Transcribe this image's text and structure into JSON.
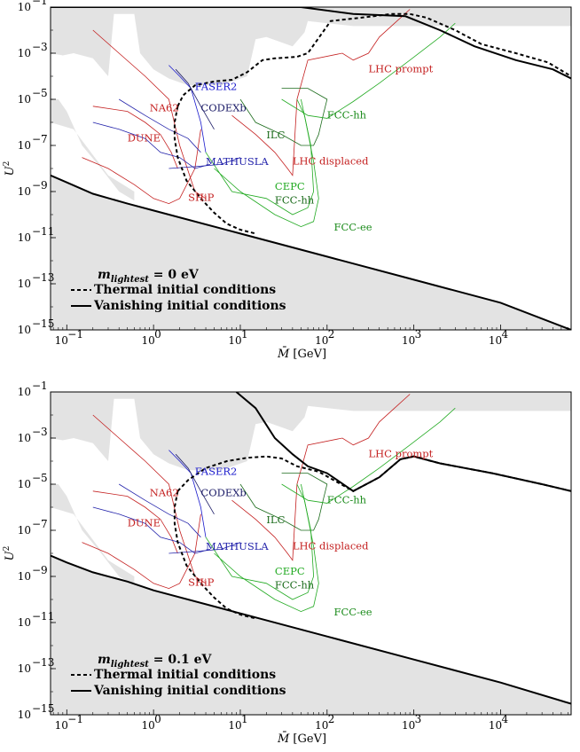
{
  "chart_data": [
    {
      "type": "line",
      "title": "",
      "annotation": "m_lightest = 0 eV",
      "annotation_main": "m",
      "annotation_sub": "lightest",
      "annotation_value": " = 0 eV",
      "xlabel_main": "M̄",
      "xlabel_unit": " [GeV]",
      "ylabel_main": "U",
      "ylabel_exp": "2",
      "xscale": "log",
      "yscale": "log",
      "xlim": [
        0.065,
        65000
      ],
      "ylim": [
        1e-15,
        0.1
      ],
      "x_ticks": [
        {
          "v": 0.1,
          "b": "10",
          "e": "−1"
        },
        {
          "v": 1,
          "b": "10",
          "e": "0"
        },
        {
          "v": 10,
          "b": "10",
          "e": "1"
        },
        {
          "v": 100,
          "b": "10",
          "e": "2"
        },
        {
          "v": 1000,
          "b": "10",
          "e": "3"
        },
        {
          "v": 10000,
          "b": "10",
          "e": "4"
        }
      ],
      "y_ticks": [
        {
          "v": 0.1,
          "b": "10",
          "e": "−1"
        },
        {
          "v": 0.001,
          "b": "10",
          "e": "−3"
        },
        {
          "v": 1e-05,
          "b": "10",
          "e": "−5"
        },
        {
          "v": 1e-07,
          "b": "10",
          "e": "−7"
        },
        {
          "v": 1e-09,
          "b": "10",
          "e": "−9"
        },
        {
          "v": 1e-11,
          "b": "10",
          "e": "−11"
        },
        {
          "v": 1e-13,
          "b": "10",
          "e": "−13"
        },
        {
          "v": 1e-15,
          "b": "10",
          "e": "−15"
        }
      ],
      "legend": [
        {
          "name": "Thermal initial conditions",
          "style": "dotted"
        },
        {
          "name": "Vanishing initial conditions",
          "style": "solid"
        }
      ],
      "series": [
        {
          "name": "Thermal initial conditions",
          "style": "dotted",
          "points": [
            [
              1.9,
              5e-06
            ],
            [
              2.2,
              1.5e-05
            ],
            [
              3,
              4e-05
            ],
            [
              5,
              6e-05
            ],
            [
              8,
              7e-05
            ],
            [
              12,
              0.00015
            ],
            [
              18,
              0.0005
            ],
            [
              25,
              0.0006
            ],
            [
              45,
              0.0007
            ],
            [
              60,
              0.001
            ],
            [
              110,
              0.025
            ],
            [
              250,
              0.035
            ],
            [
              550,
              0.05
            ],
            [
              900,
              0.05
            ],
            [
              1400,
              0.035
            ],
            [
              3000,
              0.01
            ],
            [
              6000,
              0.0025
            ],
            [
              15000,
              0.001
            ],
            [
              35000,
              0.0004
            ],
            [
              65000,
              0.0001
            ],
            [
              65000,
              0.0001
            ]
          ],
          "lower": [
            [
              1.9,
              5e-06
            ],
            [
              1.75,
              1e-06
            ],
            [
              1.75,
              2e-07
            ],
            [
              1.9,
              3e-08
            ],
            [
              2.4,
              3e-09
            ],
            [
              3.5,
              5e-10
            ],
            [
              5,
              1.2e-10
            ],
            [
              7,
              4e-11
            ],
            [
              10,
              2.2e-11
            ],
            [
              15,
              1.5e-11
            ]
          ]
        },
        {
          "name": "Vanishing initial conditions",
          "style": "solid",
          "points": [
            [
              0.065,
              5e-09
            ],
            [
              0.1,
              2.5e-09
            ],
            [
              0.2,
              8e-10
            ],
            [
              0.5,
              3e-10
            ],
            [
              1,
              1.5e-10
            ],
            [
              10,
              1.5e-11
            ],
            [
              100,
              1.5e-12
            ],
            [
              1000,
              1.5e-13
            ],
            [
              10000,
              1.5e-14
            ],
            [
              65000,
              1e-15
            ]
          ],
          "upper": [
            [
              0.065,
              0.1
            ],
            [
              50,
              0.1
            ],
            [
              200,
              0.05
            ],
            [
              800,
              0.04
            ],
            [
              2000,
              0.01
            ],
            [
              5000,
              0.002
            ],
            [
              15000,
              0.0005
            ],
            [
              40000,
              0.0002
            ],
            [
              65000,
              8e-05
            ]
          ]
        }
      ],
      "labels": [
        {
          "text": "FASER2",
          "color": "#1a1acc",
          "x": 3.0,
          "y": 2.5e-05
        },
        {
          "text": "NA62",
          "color": "#c42020",
          "x": 0.9,
          "y": 3e-06
        },
        {
          "text": "CODEXb",
          "color": "#1a1a66",
          "x": 3.5,
          "y": 3e-06
        },
        {
          "text": "DUNE",
          "color": "#c42020",
          "x": 0.5,
          "y": 1.5e-07
        },
        {
          "text": "MATHUSLA",
          "color": "#2222aa",
          "x": 4.0,
          "y": 1.4e-08
        },
        {
          "text": "ILC",
          "color": "#1b6b1b",
          "x": 20,
          "y": 2e-07
        },
        {
          "text": "LHC displaced",
          "color": "#c42020",
          "x": 40,
          "y": 1.5e-08
        },
        {
          "text": "SHiP",
          "color": "#c42020",
          "x": 2.5,
          "y": 4e-10
        },
        {
          "text": "CEPC",
          "color": "#22aa22",
          "x": 25,
          "y": 1.2e-09
        },
        {
          "text": "FCC-hh",
          "color": "#1b6b1b",
          "x": 25,
          "y": 3e-10
        },
        {
          "text": "FCC-ee",
          "color": "#1b8b1b",
          "x": 120,
          "y": 2e-11
        },
        {
          "text": "FCC-hh",
          "color": "#1b8b1b",
          "x": 100,
          "y": 1.5e-06
        },
        {
          "text": "LHC prompt",
          "color": "#c42020",
          "x": 300,
          "y": 0.00015
        }
      ]
    },
    {
      "type": "line",
      "title": "",
      "annotation": "m_lightest = 0.1 eV",
      "annotation_main": "m",
      "annotation_sub": "lightest",
      "annotation_value": " = 0.1 eV",
      "xlabel_main": "M̄",
      "xlabel_unit": " [GeV]",
      "ylabel_main": "U",
      "ylabel_exp": "2",
      "xscale": "log",
      "yscale": "log",
      "xlim": [
        0.065,
        65000
      ],
      "ylim": [
        1e-15,
        0.1
      ],
      "x_ticks": [
        {
          "v": 0.1,
          "b": "10",
          "e": "−1"
        },
        {
          "v": 1,
          "b": "10",
          "e": "0"
        },
        {
          "v": 10,
          "b": "10",
          "e": "1"
        },
        {
          "v": 100,
          "b": "10",
          "e": "2"
        },
        {
          "v": 1000,
          "b": "10",
          "e": "3"
        },
        {
          "v": 10000,
          "b": "10",
          "e": "4"
        }
      ],
      "y_ticks": [
        {
          "v": 0.1,
          "b": "10",
          "e": "−1"
        },
        {
          "v": 0.001,
          "b": "10",
          "e": "−3"
        },
        {
          "v": 1e-05,
          "b": "10",
          "e": "−5"
        },
        {
          "v": 1e-07,
          "b": "10",
          "e": "−7"
        },
        {
          "v": 1e-09,
          "b": "10",
          "e": "−9"
        },
        {
          "v": 1e-11,
          "b": "10",
          "e": "−11"
        },
        {
          "v": 1e-13,
          "b": "10",
          "e": "−13"
        },
        {
          "v": 1e-15,
          "b": "10",
          "e": "−15"
        }
      ],
      "legend": [
        {
          "name": "Thermal initial conditions",
          "style": "dotted"
        },
        {
          "name": "Vanishing initial conditions",
          "style": "solid"
        }
      ],
      "series": [
        {
          "name": "Thermal initial conditions",
          "style": "dotted",
          "points": [
            [
              1.9,
              5e-06
            ],
            [
              2.5,
              1.5e-05
            ],
            [
              4,
              5e-05
            ],
            [
              7,
              0.0001
            ],
            [
              12,
              0.00014
            ],
            [
              20,
              0.00016
            ],
            [
              30,
              0.00013
            ],
            [
              45,
              6e-05
            ],
            [
              80,
              3.5e-05
            ],
            [
              200,
              5e-06
            ],
            [
              400,
              2e-05
            ],
            [
              700,
              0.00012
            ],
            [
              1000,
              0.00016
            ],
            [
              2000,
              8e-05
            ],
            [
              8000,
              3e-05
            ],
            [
              30000,
              1e-05
            ],
            [
              65000,
              5e-06
            ]
          ],
          "lower": [
            [
              1.9,
              5e-06
            ],
            [
              1.75,
              1e-06
            ],
            [
              1.75,
              2e-07
            ],
            [
              1.9,
              3e-08
            ],
            [
              2.4,
              3e-09
            ],
            [
              3.5,
              5e-10
            ],
            [
              5,
              1.2e-10
            ],
            [
              7,
              4e-11
            ],
            [
              10,
              2.2e-11
            ],
            [
              15,
              1.5e-11
            ]
          ]
        },
        {
          "name": "Vanishing initial conditions",
          "style": "solid",
          "points": [
            [
              0.065,
              8e-09
            ],
            [
              0.1,
              4e-09
            ],
            [
              0.2,
              1.5e-09
            ],
            [
              0.5,
              6e-10
            ],
            [
              1,
              2.5e-10
            ],
            [
              10,
              2.5e-11
            ],
            [
              100,
              2.5e-12
            ],
            [
              1000,
              2.5e-13
            ],
            [
              10000,
              2.5e-14
            ],
            [
              65000,
              3e-15
            ]
          ],
          "upper": [
            [
              9,
              0.1
            ],
            [
              15,
              0.02
            ],
            [
              25,
              0.001
            ],
            [
              40,
              0.0002
            ],
            [
              60,
              6e-05
            ],
            [
              100,
              3e-05
            ],
            [
              200,
              5e-06
            ],
            [
              400,
              2e-05
            ],
            [
              700,
              0.00012
            ],
            [
              1000,
              0.00016
            ],
            [
              2000,
              8e-05
            ],
            [
              8000,
              3e-05
            ],
            [
              30000,
              1e-05
            ],
            [
              65000,
              5e-06
            ]
          ]
        }
      ],
      "labels": [
        {
          "text": "FASER2",
          "color": "#1a1acc",
          "x": 3.0,
          "y": 2.5e-05
        },
        {
          "text": "NA62",
          "color": "#c42020",
          "x": 0.9,
          "y": 3e-06
        },
        {
          "text": "CODEXb",
          "color": "#1a1a66",
          "x": 3.5,
          "y": 3e-06
        },
        {
          "text": "DUNE",
          "color": "#c42020",
          "x": 0.5,
          "y": 1.5e-07
        },
        {
          "text": "MATHUSLA",
          "color": "#2222aa",
          "x": 4.0,
          "y": 1.4e-08
        },
        {
          "text": "ILC",
          "color": "#1b6b1b",
          "x": 20,
          "y": 2e-07
        },
        {
          "text": "LHC displaced",
          "color": "#c42020",
          "x": 40,
          "y": 1.5e-08
        },
        {
          "text": "SHiP",
          "color": "#c42020",
          "x": 2.5,
          "y": 4e-10
        },
        {
          "text": "CEPC",
          "color": "#22aa22",
          "x": 25,
          "y": 1.2e-09
        },
        {
          "text": "FCC-hh",
          "color": "#1b6b1b",
          "x": 25,
          "y": 3e-10
        },
        {
          "text": "FCC-ee",
          "color": "#1b8b1b",
          "x": 120,
          "y": 2e-11
        },
        {
          "text": "FCC-hh",
          "color": "#1b8b1b",
          "x": 100,
          "y": 1.5e-06
        },
        {
          "text": "LHC prompt",
          "color": "#c42020",
          "x": 300,
          "y": 0.00015
        }
      ]
    }
  ]
}
